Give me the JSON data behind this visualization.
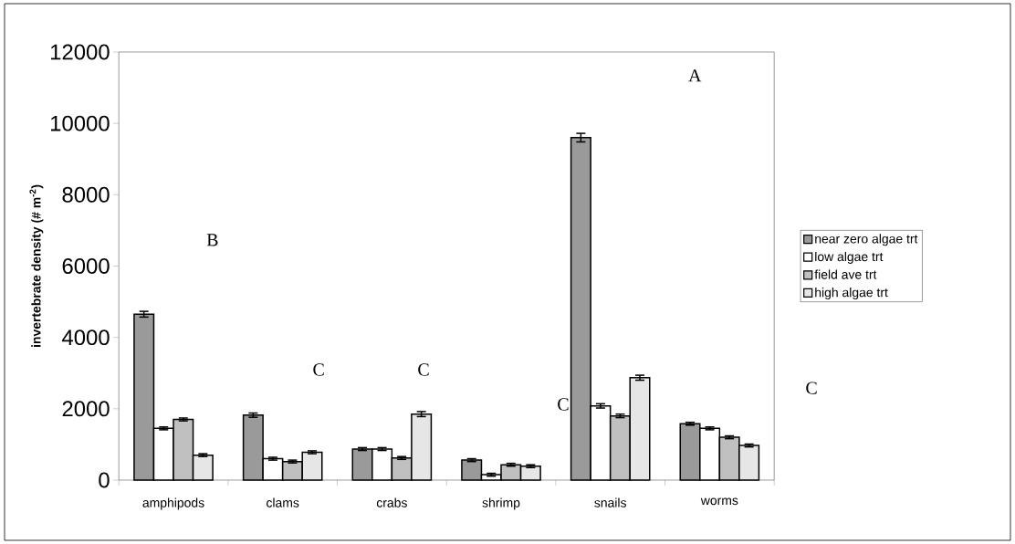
{
  "chart_data": {
    "type": "bar",
    "ylabel": "invertebrate density (# m$^{-2}$)",
    "categories": [
      "amphipods",
      "clams",
      "crabs",
      "shrimp",
      "snails",
      "worms"
    ],
    "series": [
      {
        "name": "near zero algae trt",
        "color": "#9a9a9a",
        "values": [
          4650,
          1820,
          870,
          560,
          9600,
          1580
        ],
        "errors": [
          80,
          60,
          40,
          40,
          120,
          40
        ]
      },
      {
        "name": "low algae trt",
        "color": "#ffffff",
        "values": [
          1450,
          600,
          870,
          150,
          2080,
          1450
        ],
        "errors": [
          40,
          40,
          40,
          40,
          60,
          40
        ]
      },
      {
        "name": "field ave trt",
        "color": "#c0c0c0",
        "values": [
          1700,
          520,
          620,
          430,
          1800,
          1200
        ],
        "errors": [
          40,
          40,
          40,
          40,
          50,
          40
        ]
      },
      {
        "name": "high algae trt",
        "color": "#e6e6e6",
        "values": [
          700,
          780,
          1850,
          390,
          2870,
          970
        ],
        "errors": [
          40,
          40,
          70,
          40,
          70,
          40
        ]
      }
    ],
    "ylim": [
      0,
      12000
    ],
    "yticks": [
      0,
      2000,
      4000,
      6000,
      8000,
      10000,
      12000
    ],
    "legend": "right",
    "annotations": [
      "A",
      "B",
      "C",
      "C",
      "C",
      "C"
    ]
  }
}
